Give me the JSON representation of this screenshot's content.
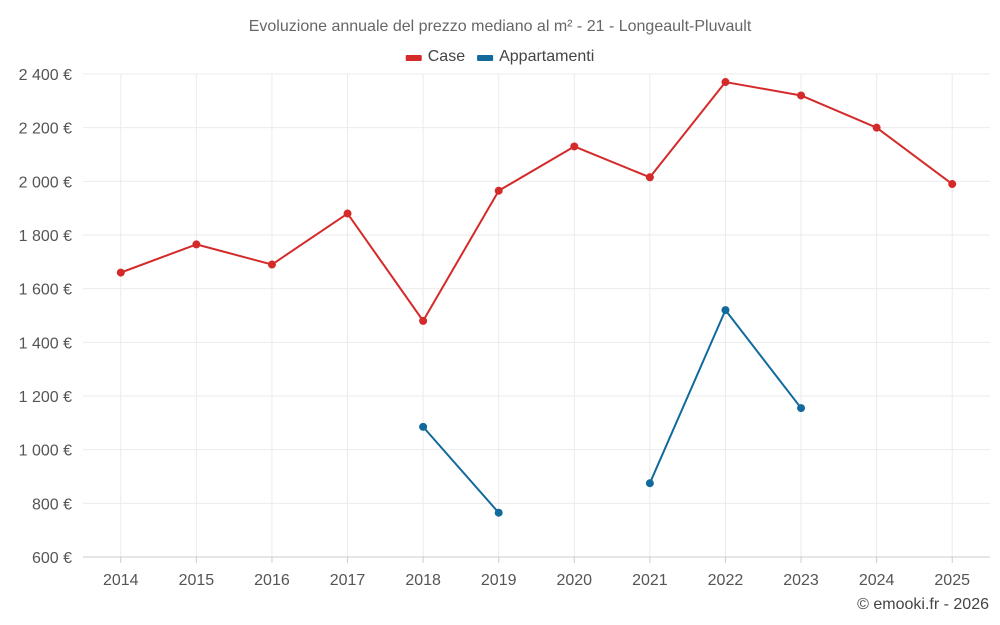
{
  "chart_data": {
    "type": "line",
    "title": "Evoluzione annuale del prezzo mediano al m² - 21 - Longeault-Pluvault",
    "categories": [
      "2014",
      "2015",
      "2016",
      "2017",
      "2018",
      "2019",
      "2020",
      "2021",
      "2022",
      "2023",
      "2024",
      "2025"
    ],
    "ylim": [
      600,
      2400
    ],
    "yticks": [
      600,
      800,
      1000,
      1200,
      1400,
      1600,
      1800,
      2000,
      2200,
      2400
    ],
    "ytick_labels": [
      "600 €",
      "800 €",
      "1 000 €",
      "1 200 €",
      "1 400 €",
      "1 600 €",
      "1 800 €",
      "2 000 €",
      "2 200 €",
      "2 400 €"
    ],
    "legend_position": "top-center",
    "grid": true,
    "series": [
      {
        "name": "Case",
        "color": "#d42a2a",
        "values": [
          1660,
          1765,
          1690,
          1880,
          1480,
          1965,
          2130,
          2015,
          2370,
          2320,
          2200,
          1990
        ]
      },
      {
        "name": "Appartamenti",
        "color": "#126a9c",
        "values": [
          null,
          null,
          null,
          null,
          1085,
          765,
          null,
          875,
          1520,
          1155,
          null,
          null
        ]
      }
    ]
  },
  "credit": "© emooki.fr - 2026"
}
